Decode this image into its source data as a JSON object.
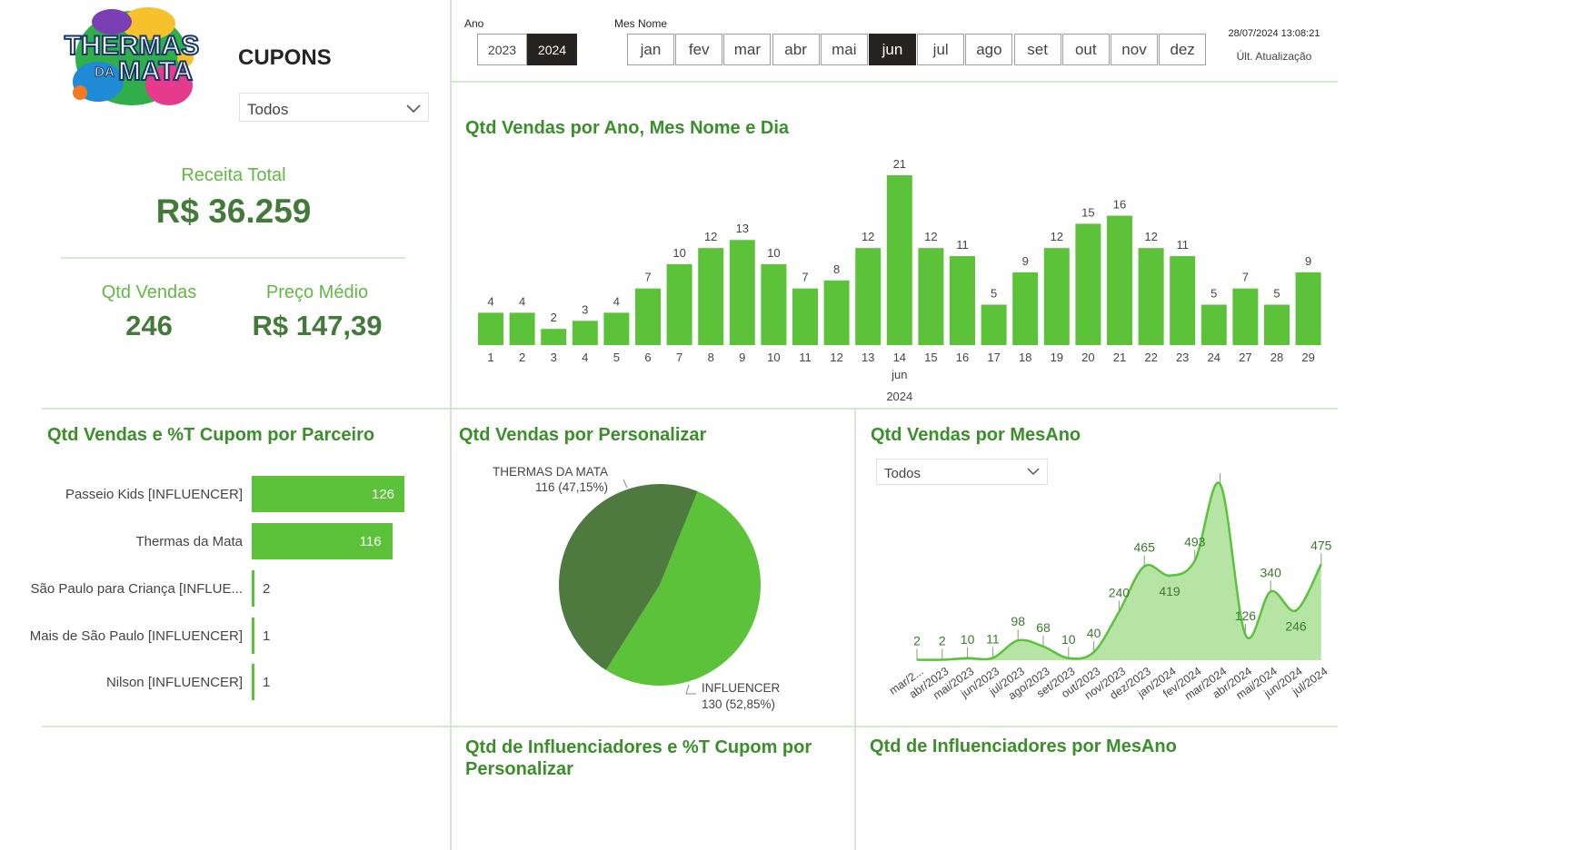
{
  "header": {
    "page_title": "CUPONS",
    "dropdown_value": "Todos",
    "ano_label": "Ano",
    "mes_label": "Mes Nome",
    "timestamp": "28/07/2024 13:08:21",
    "update_label": "Últ. Atualização"
  },
  "logo": {
    "line1": "THERMAS",
    "line2": "DA",
    "line3": "MATA"
  },
  "year_slicer": [
    {
      "label": "2023",
      "selected": false
    },
    {
      "label": "2024",
      "selected": true
    }
  ],
  "month_slicer": [
    {
      "label": "jan",
      "selected": false
    },
    {
      "label": "fev",
      "selected": false
    },
    {
      "label": "mar",
      "selected": false
    },
    {
      "label": "abr",
      "selected": false
    },
    {
      "label": "mai",
      "selected": false
    },
    {
      "label": "jun",
      "selected": true
    },
    {
      "label": "jul",
      "selected": false
    },
    {
      "label": "ago",
      "selected": false
    },
    {
      "label": "set",
      "selected": false
    },
    {
      "label": "out",
      "selected": false
    },
    {
      "label": "nov",
      "selected": false
    },
    {
      "label": "dez",
      "selected": false
    }
  ],
  "kpis": {
    "receita_label": "Receita Total",
    "receita_value": "R$ 36.259",
    "qtd_label": "Qtd Vendas",
    "qtd_value": "246",
    "preco_label": "Preço Médio",
    "preco_value": "R$ 147,39"
  },
  "colors": {
    "bar_green": "#5cc23a",
    "dark_green": "#4e7a40",
    "title_green": "#3b8f2b",
    "area_fill": "#b5e4a4",
    "selected_dark": "#252423"
  },
  "chart_data": [
    {
      "type": "bar",
      "title": "Qtd Vendas por Ano, Mes Nome e Dia",
      "categories": [
        "1",
        "2",
        "3",
        "4",
        "5",
        "6",
        "7",
        "8",
        "9",
        "10",
        "11",
        "12",
        "13",
        "14",
        "15",
        "16",
        "17",
        "18",
        "19",
        "20",
        "21",
        "22",
        "23",
        "24",
        "27",
        "28",
        "29"
      ],
      "values": [
        4,
        4,
        2,
        3,
        4,
        7,
        10,
        12,
        13,
        10,
        7,
        8,
        12,
        21,
        12,
        11,
        5,
        9,
        12,
        15,
        16,
        12,
        11,
        5,
        7,
        5,
        9
      ],
      "x_month_label": "jun",
      "x_month_under": "14",
      "x_year_label": "2024",
      "ylim": [
        0,
        21
      ]
    },
    {
      "type": "bar",
      "orientation": "horizontal",
      "title": "Qtd Vendas e %T Cupom por Parceiro",
      "categories": [
        "Passeio Kids [INFLUENCER]",
        "Thermas da Mata",
        "São Paulo para Criança [INFLUE...",
        "Mais de São Paulo [INFLUENCER]",
        "Nilson [INFLUENCER]"
      ],
      "values": [
        126,
        116,
        2,
        1,
        1
      ]
    },
    {
      "type": "pie",
      "title": "Qtd Vendas por Personalizar",
      "slices": [
        {
          "name": "THERMAS DA MATA",
          "value": 116,
          "label": "116 (47,15%)"
        },
        {
          "name": "INFLUENCER",
          "value": 130,
          "label": "130 (52,85%)"
        }
      ]
    },
    {
      "type": "area",
      "title": "Qtd Vendas por MesAno",
      "dropdown_value": "Todos",
      "categories": [
        "mar/2...",
        "abr/2023",
        "mai/2023",
        "jun/2023",
        "jul/2023",
        "ago/2023",
        "set/2023",
        "out/2023",
        "nov/2023",
        "dez/2023",
        "jan/2024",
        "fev/2024",
        "mar/2024",
        "abr/2024",
        "mai/2024",
        "jun/2024",
        "jul/2024"
      ],
      "values": [
        2,
        2,
        10,
        11,
        98,
        68,
        10,
        40,
        240,
        465,
        419,
        493,
        872,
        126,
        340,
        246,
        475
      ],
      "ylim": [
        0,
        872
      ]
    }
  ],
  "bottom_titles": {
    "left_line1": "Qtd de Influenciadores e %T Cupom por",
    "left_line2": "Personalizar",
    "right": "Qtd de Influenciadores por MesAno"
  }
}
